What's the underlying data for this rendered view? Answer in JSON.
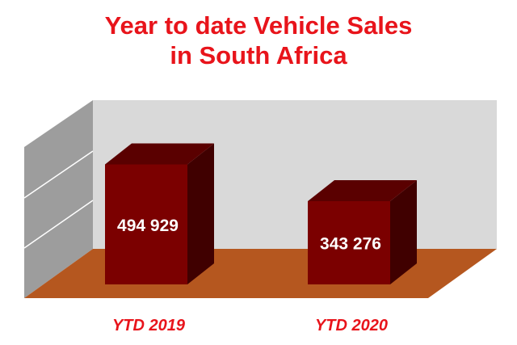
{
  "chart_data": {
    "type": "bar",
    "title_lines": [
      "Year to date Vehicle Sales",
      "in South Africa"
    ],
    "categories": [
      "YTD 2019",
      "YTD 2020"
    ],
    "values": [
      494929,
      343276
    ],
    "data_labels": [
      "494 929",
      "343 276"
    ],
    "xlabel": "",
    "ylabel": "",
    "ylim": [
      0,
      600000
    ],
    "grid": true,
    "legend": "none",
    "style": "3d"
  },
  "colors": {
    "title": "#e8141b",
    "category_label": "#e8141b",
    "bar_front": "#7b0000",
    "bar_top": "#5a0000",
    "bar_side": "#400000",
    "floor": "#b5571f",
    "back_wall": "#d9d9d9",
    "side_wall": "#9d9d9d"
  }
}
